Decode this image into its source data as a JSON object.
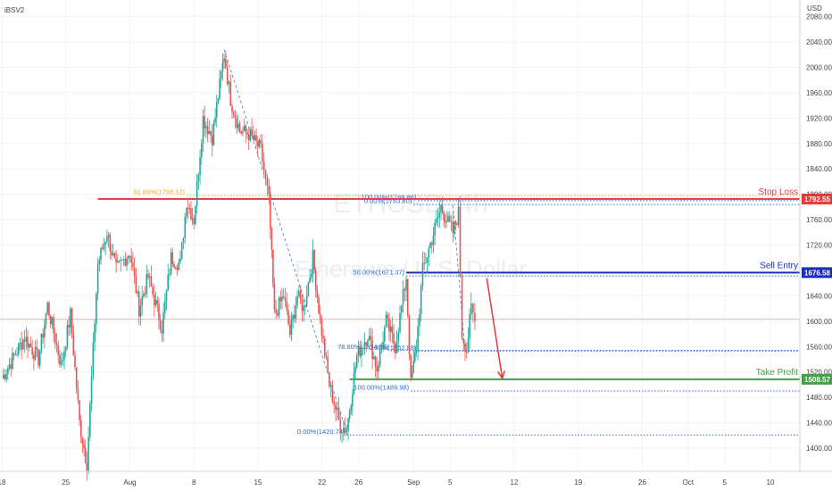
{
  "header": {
    "symbol_code": "iBSV2",
    "currency": "USD"
  },
  "watermark": {
    "symbol": "ETHUSD, 4h",
    "description": "Ethereum / U.S. Dollar"
  },
  "chart_data": {
    "type": "candlestick",
    "price_axis": {
      "min": 1360,
      "max": 2080,
      "ticks": [
        1400,
        1440,
        1480,
        1520,
        1560,
        1600,
        1640,
        1680,
        1720,
        1760,
        1800,
        1840,
        1880,
        1920,
        1960,
        2000,
        2040,
        2080
      ]
    },
    "time_axis_labels": [
      "18",
      "25",
      "Aug",
      "8",
      "15",
      "22",
      "26",
      "Sep",
      "5",
      "12",
      "19",
      "26",
      "Oct",
      "5",
      "10"
    ],
    "current_price": 1603,
    "ohlc_pivots": [
      {
        "d": 18.0,
        "p": 1510
      },
      {
        "d": 20.5,
        "p": 1575
      },
      {
        "d": 22.0,
        "p": 1540
      },
      {
        "d": 23.0,
        "p": 1625
      },
      {
        "d": 24.5,
        "p": 1530
      },
      {
        "d": 25.5,
        "p": 1610
      },
      {
        "d": 26.5,
        "p": 1440
      },
      {
        "d": 27.3,
        "p": 1375
      },
      {
        "d": 28.5,
        "p": 1690
      },
      {
        "d": 29.5,
        "p": 1740
      },
      {
        "d": 30.5,
        "p": 1680
      },
      {
        "d": 32.0,
        "p": 1710
      },
      {
        "d": 33.0,
        "p": 1620
      },
      {
        "d": 34.0,
        "p": 1670
      },
      {
        "d": 35.5,
        "p": 1590
      },
      {
        "d": 36.5,
        "p": 1700
      },
      {
        "d": 37.5,
        "p": 1690
      },
      {
        "d": 38.2,
        "p": 1790
      },
      {
        "d": 39.0,
        "p": 1760
      },
      {
        "d": 40.0,
        "p": 1920
      },
      {
        "d": 41.0,
        "p": 1890
      },
      {
        "d": 42.3,
        "p": 2020
      },
      {
        "d": 43.0,
        "p": 1950
      },
      {
        "d": 44.0,
        "p": 1900
      },
      {
        "d": 45.0,
        "p": 1895
      },
      {
        "d": 46.3,
        "p": 1870
      },
      {
        "d": 47.2,
        "p": 1790
      },
      {
        "d": 47.8,
        "p": 1610
      },
      {
        "d": 48.8,
        "p": 1640
      },
      {
        "d": 49.5,
        "p": 1580
      },
      {
        "d": 50.3,
        "p": 1640
      },
      {
        "d": 51.0,
        "p": 1620
      },
      {
        "d": 52.0,
        "p": 1700
      },
      {
        "d": 52.8,
        "p": 1600
      },
      {
        "d": 53.8,
        "p": 1500
      },
      {
        "d": 55.0,
        "p": 1435
      },
      {
        "d": 55.7,
        "p": 1430
      },
      {
        "d": 56.8,
        "p": 1545
      },
      {
        "d": 58.0,
        "p": 1580
      },
      {
        "d": 59.0,
        "p": 1525
      },
      {
        "d": 60.0,
        "p": 1600
      },
      {
        "d": 61.0,
        "p": 1560
      },
      {
        "d": 62.2,
        "p": 1670
      },
      {
        "d": 62.7,
        "p": 1500
      },
      {
        "d": 63.3,
        "p": 1560
      },
      {
        "d": 64.0,
        "p": 1680
      },
      {
        "d": 65.0,
        "p": 1730
      },
      {
        "d": 66.0,
        "p": 1780
      },
      {
        "d": 66.6,
        "p": 1760
      },
      {
        "d": 67.3,
        "p": 1740
      },
      {
        "d": 67.9,
        "p": 1770
      },
      {
        "d": 68.3,
        "p": 1580
      },
      {
        "d": 68.8,
        "p": 1555
      },
      {
        "d": 69.3,
        "p": 1620
      },
      {
        "d": 69.7,
        "p": 1600
      }
    ],
    "trade_levels": [
      {
        "label": "Stop Loss",
        "price": 1792.55,
        "tag": "1792.55",
        "color": "#e53935",
        "d_start": 28.5
      },
      {
        "label": "Sell Entry",
        "price": 1676.58,
        "tag": "1676.58",
        "color": "#1a2fb8",
        "d_start": 62.2
      },
      {
        "label": "Take Profit",
        "price": 1508.57,
        "tag": "1508.57",
        "color": "#43a047",
        "d_start": 56.0
      }
    ],
    "fib_levels": [
      {
        "text": "61.80%(1798.12)",
        "price": 1798.12,
        "d_start": 38.2,
        "color": "#f5a623"
      },
      {
        "text": "100.00%(1789.86)",
        "price": 1789.86,
        "d_start": 63.5,
        "color": "#2f6bd1"
      },
      {
        "text": "0.00%(1783.80)",
        "price": 1783.8,
        "d_start": 63.0,
        "color": "#2f6bd1"
      },
      {
        "text": "50.00%(1671.37)",
        "price": 1671.37,
        "d_start": 62.2,
        "color": "#2f6bd1"
      },
      {
        "text": "0.00%(1552.88)",
        "price": 1552.88,
        "d_start": 63.5,
        "color": "#2f6bd1"
      },
      {
        "text": "78.60%(1554.15)",
        "price": 1554.15,
        "d_start": 60.5,
        "color": "#2f6bd1"
      },
      {
        "text": "100.00%(1489.98)",
        "price": 1489.98,
        "d_start": 62.7,
        "color": "#2f6bd1"
      },
      {
        "text": "0.00%(1420.74)",
        "price": 1420.74,
        "d_start": 55.7,
        "color": "#2f6bd1"
      }
    ],
    "forecast_arrow": {
      "from": {
        "d": 71.0,
        "p": 1668
      },
      "to": {
        "d": 72.7,
        "p": 1510
      },
      "color": "#e53935"
    },
    "colors": {
      "up": "#26a69a",
      "down": "#ef5350",
      "current_price_line": "#f2b8b5",
      "grid": "#f3f3f3"
    }
  }
}
